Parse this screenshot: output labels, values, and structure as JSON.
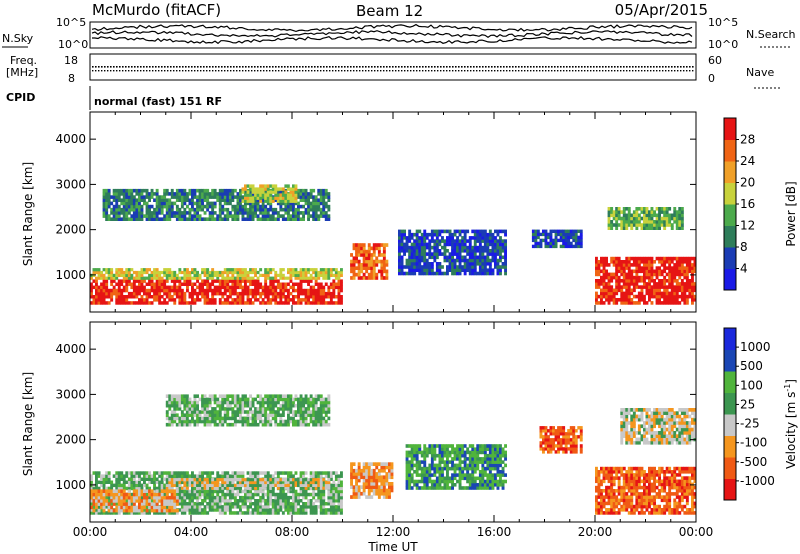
{
  "header": {
    "station": "McMurdo (fitACF)",
    "beam": "Beam 12",
    "date": "05/Apr/2015"
  },
  "panels": {
    "nsky_label": "N.Sky",
    "nsearch_label": "N.Search",
    "freq_label_1": "Freq.",
    "freq_label_2": "[MHz]",
    "nave_label": "Nave",
    "cpid_label": "CPID",
    "cpid_value": "normal (fast) 151 RF",
    "noise_left_ticks": [
      "10^5",
      "10^0"
    ],
    "noise_right_ticks": [
      "10^5",
      "10^0"
    ],
    "freq_ticks": [
      "18",
      "8"
    ],
    "nave_ticks": [
      "60",
      "0"
    ]
  },
  "colors": {
    "power": [
      "#1a1ae6",
      "#1a3cb4",
      "#2e7d5a",
      "#4caa4c",
      "#c8d23c",
      "#f0a028",
      "#f06414",
      "#e61414"
    ],
    "velocity": [
      "#e61414",
      "#f05a14",
      "#f5961e",
      "#c8c8c8",
      "#3c9650",
      "#50b43c",
      "#1a46b4",
      "#1a28dc"
    ]
  },
  "chart_data": [
    {
      "type": "heatmap",
      "name": "power",
      "ylabel": "Slant Range [km]",
      "colorbar_label": "Power [dB]",
      "colorbar_ticks": [
        "28",
        "24",
        "20",
        "16",
        "12",
        "8",
        "4"
      ],
      "xlim_hours": [
        0,
        24
      ],
      "ylim_km": [
        180,
        4600
      ],
      "y_ticks": [
        "1000",
        "2000",
        "3000",
        "4000"
      ],
      "regions": [
        {
          "t0": 0.0,
          "t1": 10.0,
          "r0": 350,
          "r1": 900,
          "level": 7
        },
        {
          "t0": 0.0,
          "t1": 10.0,
          "r0": 900,
          "r1": 1150,
          "level": 4
        },
        {
          "t0": 10.3,
          "t1": 11.8,
          "r0": 900,
          "r1": 1700,
          "level": 6
        },
        {
          "t0": 0.5,
          "t1": 9.5,
          "r0": 2200,
          "r1": 2900,
          "level": 2
        },
        {
          "t0": 6.0,
          "t1": 8.2,
          "r0": 2600,
          "r1": 3000,
          "level": 4
        },
        {
          "t0": 12.2,
          "t1": 16.5,
          "r0": 1000,
          "r1": 2000,
          "level": 1
        },
        {
          "t0": 17.5,
          "t1": 19.5,
          "r0": 1600,
          "r1": 2000,
          "level": 1
        },
        {
          "t0": 20.0,
          "t1": 24.0,
          "r0": 350,
          "r1": 1400,
          "level": 7
        },
        {
          "t0": 20.5,
          "t1": 23.5,
          "r0": 2000,
          "r1": 2500,
          "level": 3
        }
      ]
    },
    {
      "type": "heatmap",
      "name": "velocity",
      "ylabel": "Slant Range [km]",
      "xlabel": "Time UT",
      "colorbar_label": "Velocity [m s",
      "colorbar_label_exp": "-1",
      "colorbar_ticks": [
        "1000",
        "500",
        "100",
        "25",
        "-25",
        "-100",
        "-500",
        "-1000"
      ],
      "xlim_hours": [
        0,
        24
      ],
      "x_ticks": [
        "00:00",
        "04:00",
        "08:00",
        "12:00",
        "16:00",
        "20:00",
        "00:00"
      ],
      "ylim_km": [
        180,
        4600
      ],
      "y_ticks": [
        "1000",
        "2000",
        "3000",
        "4000"
      ],
      "regions": [
        {
          "t0": 0.0,
          "t1": 10.0,
          "r0": 350,
          "r1": 1300,
          "level": 4
        },
        {
          "t0": 3.0,
          "t1": 9.5,
          "r0": 900,
          "r1": 1150,
          "level": 3
        },
        {
          "t0": 0.0,
          "t1": 3.5,
          "r0": 400,
          "r1": 900,
          "level": 2
        },
        {
          "t0": 10.3,
          "t1": 12.0,
          "r0": 700,
          "r1": 1500,
          "level": 2
        },
        {
          "t0": 3.0,
          "t1": 9.5,
          "r0": 2300,
          "r1": 3000,
          "level": 4
        },
        {
          "t0": 12.5,
          "t1": 16.5,
          "r0": 900,
          "r1": 1900,
          "level": 5
        },
        {
          "t0": 17.8,
          "t1": 19.5,
          "r0": 1700,
          "r1": 2300,
          "level": 1
        },
        {
          "t0": 20.0,
          "t1": 24.0,
          "r0": 350,
          "r1": 1400,
          "level": 1
        },
        {
          "t0": 21.0,
          "t1": 24.0,
          "r0": 1900,
          "r1": 2700,
          "level": 3
        }
      ]
    }
  ]
}
